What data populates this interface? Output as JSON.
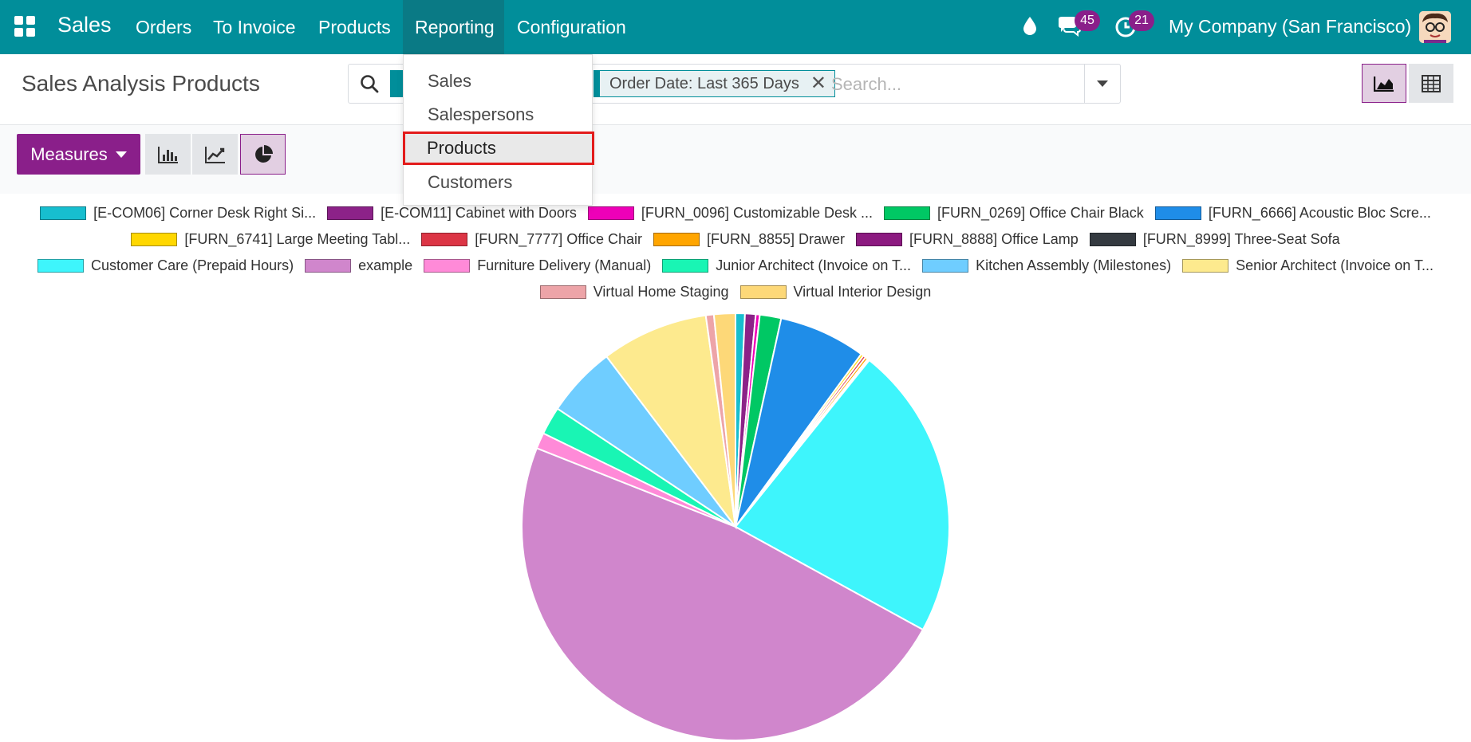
{
  "navbar": {
    "brand": "Sales",
    "menu": [
      "Orders",
      "To Invoice",
      "Products",
      "Reporting",
      "Configuration"
    ],
    "active_menu": "Reporting",
    "messages_count": "45",
    "activities_count": "21",
    "company": "My Company (San Francisco)"
  },
  "control_panel": {
    "title": "Sales Analysis Products",
    "facet_label": "Order Date: Last 365 Days",
    "search_placeholder": "Search..."
  },
  "toolbar": {
    "measures_label": "Measures"
  },
  "reporting_menu": {
    "items": [
      "Sales",
      "Salespersons",
      "Products",
      "Customers"
    ],
    "highlighted": "Products"
  },
  "chart_data": {
    "type": "pie",
    "title": "",
    "legend_placement": "top",
    "series": [
      {
        "name": "[E-COM06] Corner Desk Right Si...",
        "color": "#17becf",
        "value": 0.7
      },
      {
        "name": "[E-COM11] Cabinet with Doors",
        "color": "#8c2288",
        "value": 0.8
      },
      {
        "name": "[FURN_0096] Customizable Desk ...",
        "color": "#ee00b8",
        "value": 0.3
      },
      {
        "name": "[FURN_0269] Office Chair Black",
        "color": "#00c864",
        "value": 1.6
      },
      {
        "name": "[FURN_6666] Acoustic Bloc Scre...",
        "color": "#1f8de8",
        "value": 6.5
      },
      {
        "name": "[FURN_6741] Large Meeting Tabl...",
        "color": "#ffd700",
        "value": 0.2
      },
      {
        "name": "[FURN_7777] Office Chair",
        "color": "#dc3545",
        "value": 0.2
      },
      {
        "name": "[FURN_8855] Drawer",
        "color": "#ffa500",
        "value": 0.2
      },
      {
        "name": "[FURN_8888] Office Lamp",
        "color": "#8c1a80",
        "value": 0.1
      },
      {
        "name": "[FURN_8999] Three-Seat Sofa",
        "color": "#343a40",
        "value": 0.05
      },
      {
        "name": "Customer Care (Prepaid Hours)",
        "color": "#3ef5fc",
        "value": 22.0
      },
      {
        "name": "example",
        "color": "#d086cc",
        "value": 47.5
      },
      {
        "name": "Furniture Delivery (Manual)",
        "color": "#ff8ad8",
        "value": 1.2
      },
      {
        "name": "Junior Architect (Invoice on T...",
        "color": "#19f5b4",
        "value": 2.1
      },
      {
        "name": "Kitchen Assembly (Milestones)",
        "color": "#6fcdff",
        "value": 5.3
      },
      {
        "name": "Senior Architect (Invoice on T...",
        "color": "#fdea8e",
        "value": 8.0
      },
      {
        "name": "Virtual Home Staging",
        "color": "#eda4a8",
        "value": 0.6
      },
      {
        "name": "Virtual Interior Design",
        "color": "#fdd878",
        "value": 1.6
      }
    ]
  }
}
